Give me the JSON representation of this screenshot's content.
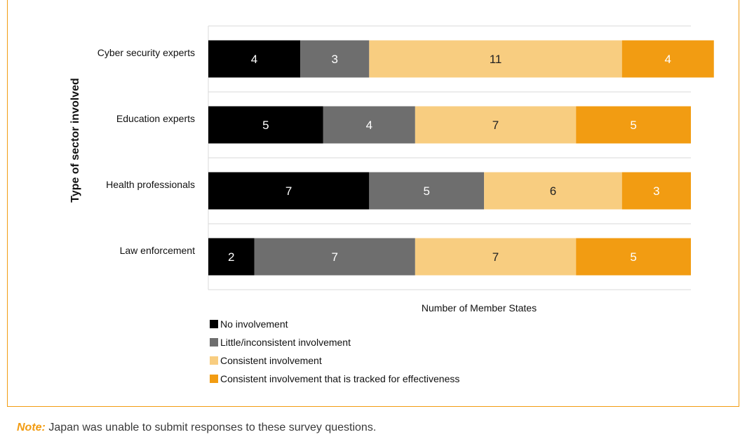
{
  "colors": {
    "frame": "#f29c12",
    "gridline": "#d9d9d9",
    "series": [
      "#000000",
      "#6e6e6e",
      "#f8cd80",
      "#f29c12"
    ],
    "label_dark": "#ffffff",
    "label_light": "#222222"
  },
  "chart_data": {
    "type": "bar",
    "orientation": "horizontal",
    "stacked": true,
    "ylabel": "Type of sector involved",
    "xlabel": "Number of Member States",
    "categories": [
      "Cyber security experts",
      "Education experts",
      "Health professionals",
      "Law enforcement"
    ],
    "series": [
      {
        "name": "No involvement",
        "values": [
          4,
          5,
          7,
          2
        ]
      },
      {
        "name": "Little/inconsistent involvement",
        "values": [
          3,
          4,
          5,
          7
        ]
      },
      {
        "name": "Consistent involvement",
        "values": [
          11,
          7,
          6,
          7
        ]
      },
      {
        "name": "Consistent involvement that is tracked for effectiveness",
        "values": [
          4,
          5,
          3,
          5
        ]
      }
    ],
    "xlim": [
      0,
      21
    ],
    "legend_position": "bottom-left",
    "grid": true
  },
  "note": {
    "label": "Note:",
    "text": " Japan was unable to submit responses to these survey questions."
  }
}
